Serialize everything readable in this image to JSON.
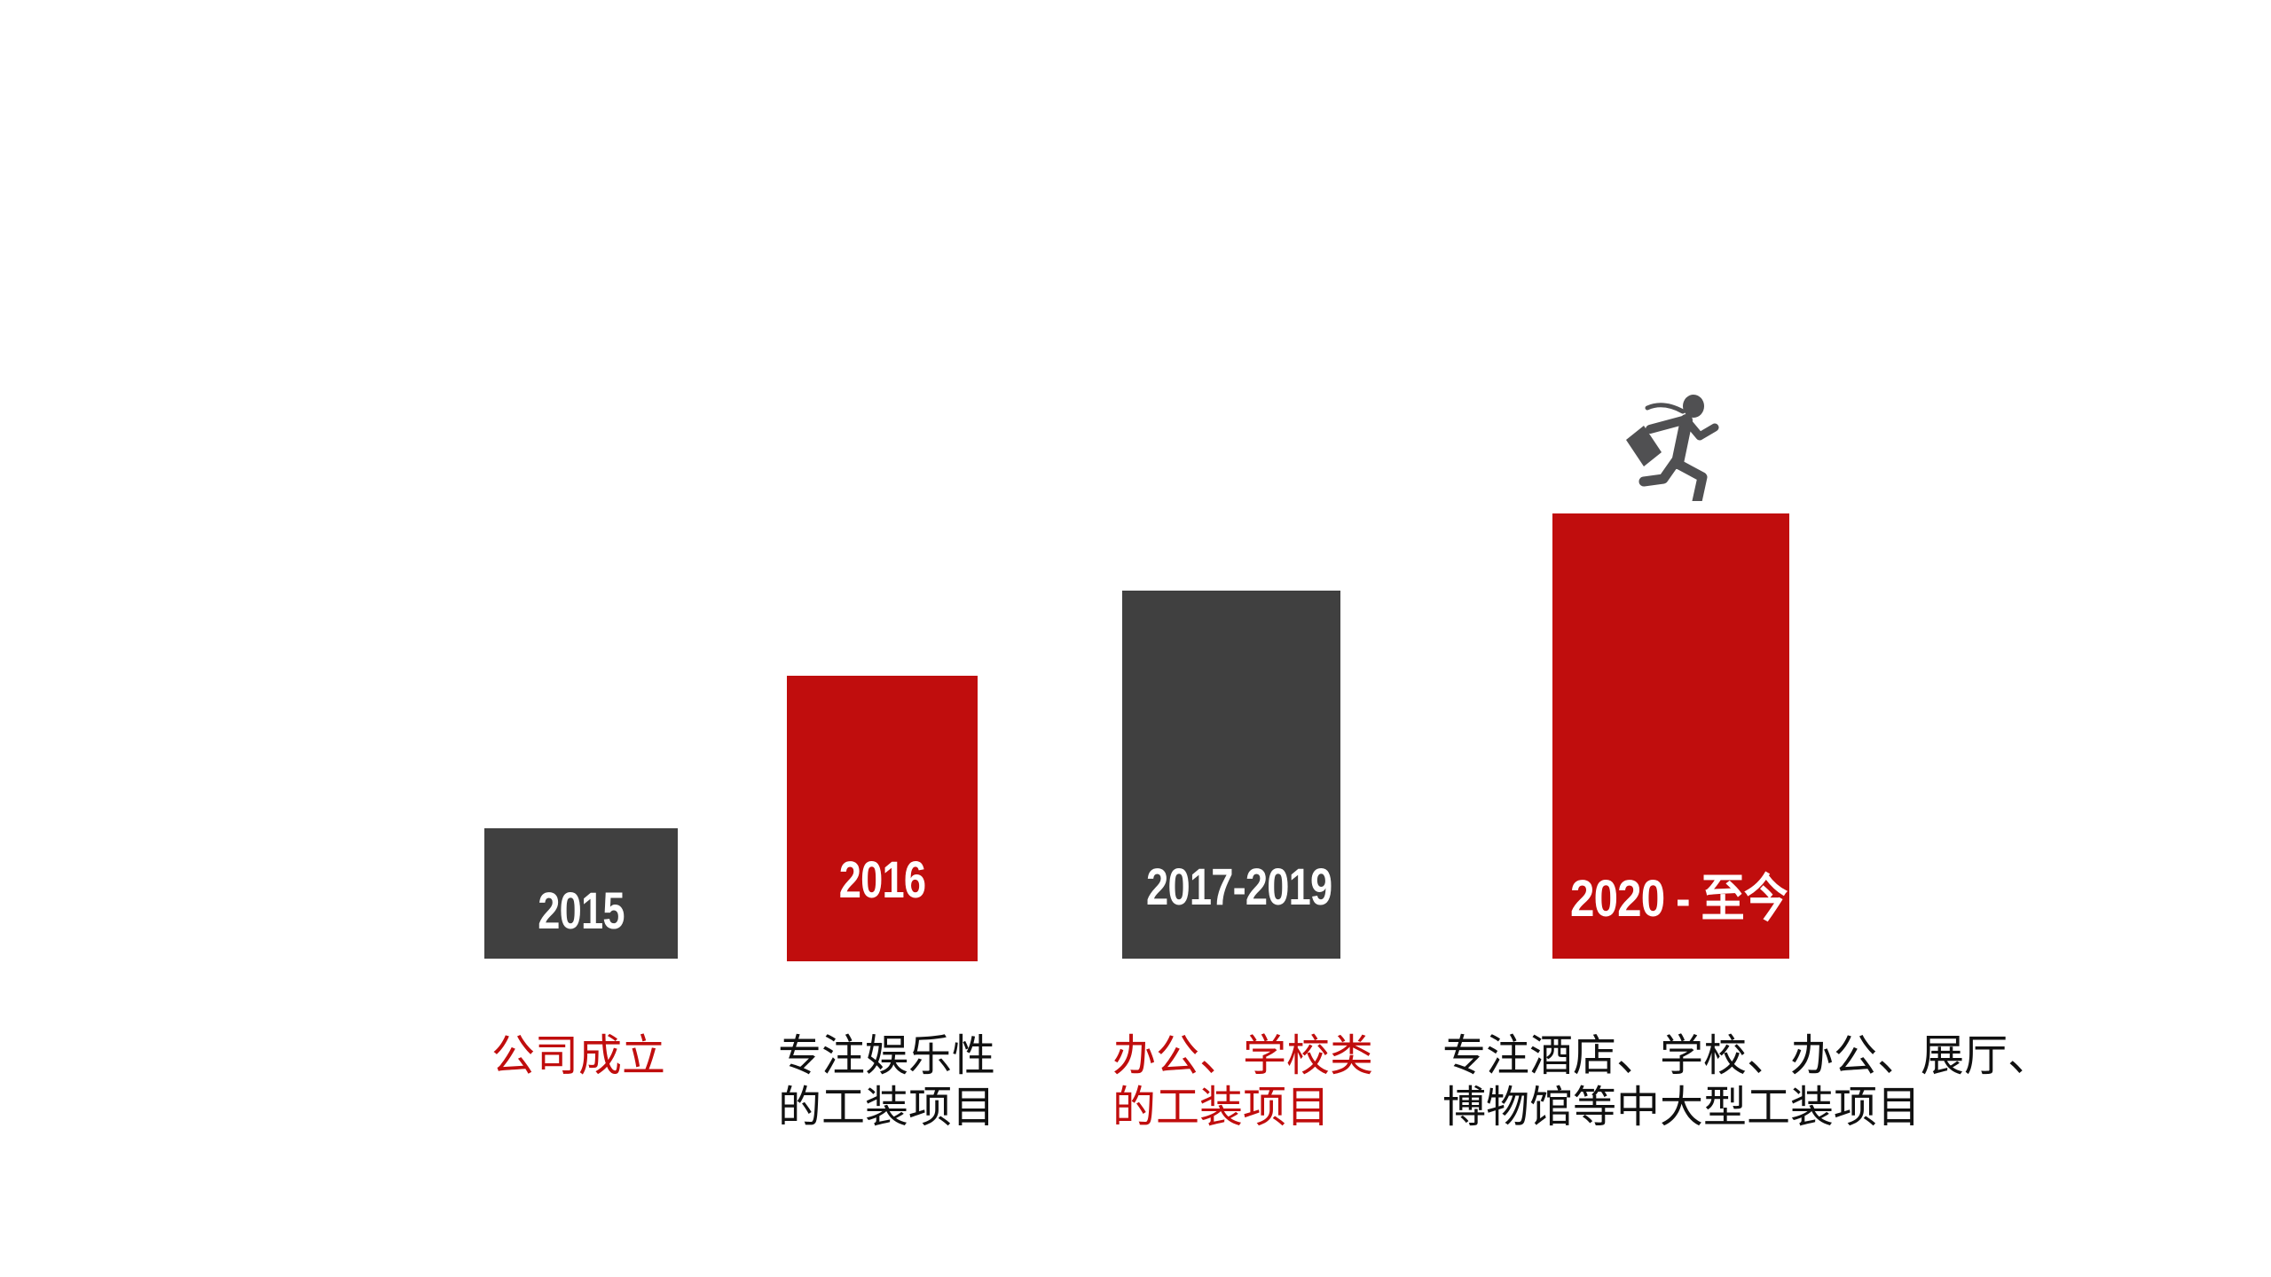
{
  "colors": {
    "red": "#c00d0d",
    "gray": "#404040",
    "icon": "#505052",
    "text_dark": "#111111"
  },
  "milestones": [
    {
      "year": "2015",
      "bar_color": "gray",
      "caption_color": "red",
      "caption_lines": [
        "公司成立"
      ]
    },
    {
      "year": "2016",
      "bar_color": "red",
      "caption_color": "dark",
      "caption_lines": [
        "专注娱乐性",
        "的工装项目"
      ]
    },
    {
      "year": "2017-2019",
      "bar_color": "gray",
      "caption_color": "red",
      "caption_lines": [
        "办公、学校类",
        "的工装项目"
      ]
    },
    {
      "year": "2020 - 至今",
      "bar_color": "red",
      "caption_color": "dark",
      "caption_lines": [
        "专注酒店、学校、办公、展厅、",
        "博物馆等中大型工装项目"
      ]
    }
  ],
  "icon": "running-businessman-icon"
}
